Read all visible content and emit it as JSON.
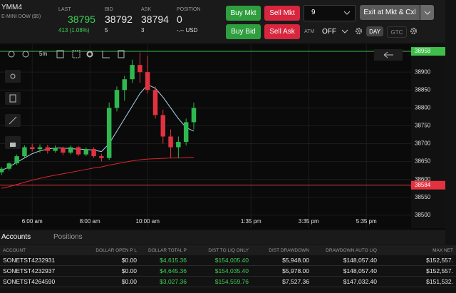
{
  "header": {
    "symbol": "YMM4",
    "description": "E-MINI DOW ($5)",
    "last_label": "LAST",
    "last": "38795",
    "change": "413 (1.08%)",
    "bid_label": "BID",
    "bid": "38792",
    "bid_size": "5",
    "ask_label": "ASK",
    "ask": "38794",
    "ask_size": "3",
    "position_label": "POSITION",
    "position": "0",
    "pnl": "-.-- USD"
  },
  "order_panel": {
    "buy_mkt": "Buy Mkt",
    "sell_mkt": "Sell Mkt",
    "buy_bid": "Buy Bid",
    "sell_ask": "Sell Ask",
    "quantity": "9",
    "exit": "Exit at Mkt & Cxl",
    "atm_label": "ATM",
    "atm": "OFF",
    "day": "DAY",
    "gtc": "GTC"
  },
  "toolbar": {
    "interval": "5m"
  },
  "chart_data": {
    "type": "candlestick",
    "x": [
      296,
      312,
      328,
      344,
      360,
      376,
      392,
      408,
      424,
      440,
      456,
      472,
      488,
      504,
      520,
      536,
      552,
      568,
      584,
      600,
      616,
      632,
      648,
      664,
      680,
      696
    ],
    "open": [
      38620,
      38630,
      38645,
      38665,
      38690,
      38685,
      38690,
      38680,
      38688,
      38675,
      38690,
      38670,
      38685,
      38665,
      38660,
      38800,
      38850,
      38880,
      38920,
      38900,
      38850,
      38780,
      38720,
      38690,
      38705,
      38760
    ],
    "high": [
      38635,
      38648,
      38670,
      38695,
      38700,
      38698,
      38697,
      38695,
      38692,
      38695,
      38694,
      38690,
      38690,
      38672,
      38815,
      38860,
      38890,
      38935,
      38955,
      38945,
      38860,
      38795,
      38740,
      38720,
      38770,
      38815
    ],
    "low": [
      38612,
      38625,
      38640,
      38660,
      38678,
      38675,
      38672,
      38675,
      38668,
      38670,
      38665,
      38665,
      38660,
      38650,
      38655,
      38790,
      38820,
      38870,
      38870,
      38840,
      38770,
      38700,
      38660,
      38660,
      38695,
      38740
    ],
    "close": [
      38630,
      38645,
      38665,
      38690,
      38685,
      38690,
      38680,
      38688,
      38675,
      38690,
      38670,
      38685,
      38665,
      38660,
      38800,
      38850,
      38880,
      38920,
      38900,
      38850,
      38780,
      38720,
      38690,
      38705,
      38760,
      38800
    ],
    "up_color": "#2fb84f",
    "down_color": "#e2323f",
    "series": [
      {
        "color": "#a9d6ee",
        "values": [
          38625,
          38635,
          38648,
          38660,
          38672,
          38680,
          38685,
          38688,
          38688,
          38686,
          38685,
          38684,
          38682,
          38678,
          38700,
          38735,
          38770,
          38805,
          38840,
          38865,
          38855,
          38830,
          38800,
          38770,
          38745,
          38735
        ]
      },
      {
        "color": "#d8262f",
        "values": [
          38575,
          38580,
          38586,
          38592,
          38598,
          38603,
          38608,
          38612,
          38616,
          38620,
          38624,
          38628,
          38632,
          38635,
          38640,
          38644,
          38648,
          38652,
          38655,
          38657,
          38658,
          38659,
          38660,
          38660,
          38661,
          38662
        ]
      }
    ],
    "hlines": [
      {
        "value": 38958,
        "color": "#3fbf4a"
      },
      {
        "value": 38584,
        "color": "#e2323f"
      }
    ],
    "xlim": [
      293,
      1148
    ],
    "xticks": [
      {
        "value": 360,
        "label": "6:00 am"
      },
      {
        "value": 480,
        "label": "8:00 am"
      },
      {
        "value": 600,
        "label": "10:00 am"
      },
      {
        "value": 815,
        "label": "1:35 pm"
      },
      {
        "value": 935,
        "label": "3:35 pm"
      },
      {
        "value": 1055,
        "label": "5:35 pm"
      }
    ],
    "ylim": [
      38464,
      38978
    ],
    "yticks": [
      38500,
      38550,
      38600,
      38650,
      38700,
      38750,
      38800,
      38850,
      38900
    ],
    "grid": true
  },
  "accounts": {
    "tabs": [
      "Accounts",
      "Positions"
    ],
    "columns": [
      "ACCOUNT",
      "DOLLAR OPEN P L",
      "DOLLAR TOTAL P",
      "DIST TO LIQ ONLY",
      "DIST DRAWDOWN",
      "DRAWDOWN AUTO LIQ",
      "MAX NET"
    ],
    "rows": [
      [
        "SONETST4232931",
        "$0.00",
        "$4,615.36",
        "$154,005.40",
        "$5,948.00",
        "$148,057.40",
        "$152,557."
      ],
      [
        "SONETST4232937",
        "$0.00",
        "$4,645.36",
        "$154,035.40",
        "$5,978.00",
        "$148,057.40",
        "$152,557."
      ],
      [
        "SONETST4264590",
        "$0.00",
        "$3,027.36",
        "$154,559.76",
        "$7,527.36",
        "$147,032.40",
        "$151,532."
      ]
    ]
  }
}
